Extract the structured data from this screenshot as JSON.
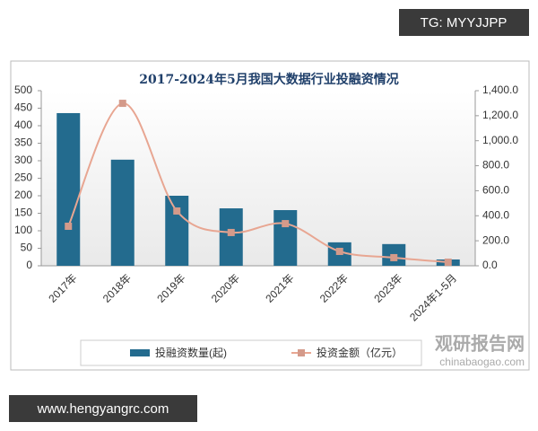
{
  "chart_data": {
    "type": "bar-line",
    "title": "2017-2024年5月我国大数据行业投融资情况",
    "categories": [
      "2017年",
      "2018年",
      "2019年",
      "2020年",
      "2021年",
      "2022年",
      "2023年",
      "2024年1-5月"
    ],
    "series": [
      {
        "name": "投融资数量(起)",
        "type": "bar",
        "color": "#236b8e",
        "values": [
          436,
          303,
          200,
          164,
          159,
          67,
          62,
          18
        ]
      },
      {
        "name": "投资金额（亿元）",
        "type": "line",
        "axis": "y2",
        "color": "#e8a692",
        "values": [
          316,
          1299,
          438,
          266,
          337,
          115,
          65,
          29
        ]
      }
    ],
    "ylim": [
      0,
      500
    ],
    "yticks": [
      0,
      50,
      100,
      150,
      200,
      250,
      300,
      350,
      400,
      450,
      500
    ],
    "y2lim": [
      0,
      1400
    ],
    "y2ticks": [
      {
        "value": 0,
        "label": "0.0"
      },
      {
        "value": 200,
        "label": "200.0"
      },
      {
        "value": 400,
        "label": "400.0"
      },
      {
        "value": 600,
        "label": "600.0"
      },
      {
        "value": 800,
        "label": "800.0"
      },
      {
        "value": 1000,
        "label": "1,000.0"
      },
      {
        "value": 1200,
        "label": "1,200.0"
      },
      {
        "value": 1400,
        "label": "1,400.0"
      }
    ],
    "legend": "bottom"
  },
  "watermarks": {
    "top_right": "TG: MYYJJPP",
    "bottom_left": "www.hengyangrc.com",
    "logo_name": "观研报告网",
    "logo_url": "chinabaogao.com"
  }
}
